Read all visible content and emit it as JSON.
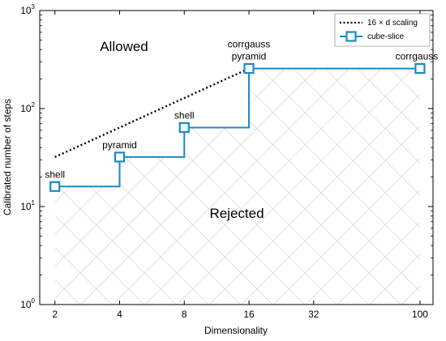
{
  "chart_data": {
    "type": "line",
    "xlabel": "Dimensionality",
    "ylabel": "Calibrated number of steps",
    "xscale": "log",
    "yscale": "log",
    "xlim": [
      1.7,
      115
    ],
    "ylim": [
      1,
      1000
    ],
    "x_ticks": [
      2,
      4,
      8,
      16,
      32,
      100
    ],
    "y_ticks": [
      {
        "value": 1,
        "base": "10",
        "exp": "0"
      },
      {
        "value": 10,
        "base": "10",
        "exp": "1"
      },
      {
        "value": 100,
        "base": "10",
        "exp": "2"
      },
      {
        "value": 1000,
        "base": "10",
        "exp": "3"
      }
    ],
    "grid": false,
    "legend_position": "top-right",
    "series": [
      {
        "name": "16 × d scaling",
        "style": "dotted",
        "color": "#000000",
        "x": [
          2,
          16
        ],
        "y": [
          32,
          256
        ]
      },
      {
        "name": "cube-slice",
        "style": "step",
        "color": "#1a8ac9",
        "marker": "square",
        "x": [
          2,
          4,
          8,
          16,
          100
        ],
        "y": [
          16,
          32,
          64,
          256,
          256
        ]
      }
    ],
    "point_labels": [
      {
        "x": 2,
        "y": 16,
        "lines": [
          "shell"
        ]
      },
      {
        "x": 4,
        "y": 32,
        "lines": [
          "pyramid"
        ]
      },
      {
        "x": 8,
        "y": 64,
        "lines": [
          "shell"
        ]
      },
      {
        "x": 16,
        "y": 256,
        "lines": [
          "corrgauss",
          "pyramid"
        ]
      },
      {
        "x": 100,
        "y": 256,
        "lines": [
          "corrgauss"
        ]
      }
    ],
    "region_labels": {
      "allowed": "Allowed",
      "rejected": "Rejected"
    }
  }
}
